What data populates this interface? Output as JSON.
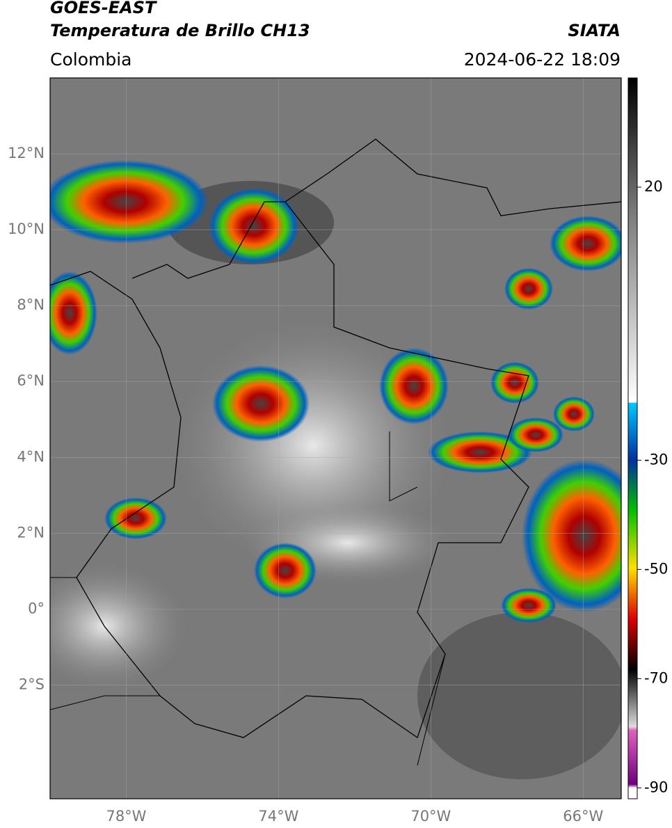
{
  "header": {
    "title_line1": "GOES-EAST",
    "title_line2": "Temperatura de Brillo CH13",
    "source": "SIATA",
    "region": "Colombia",
    "datetime": "2024-06-22 18:09"
  },
  "map": {
    "xlim": [
      -80,
      -65
    ],
    "ylim": [
      -5,
      14
    ],
    "lat_ticks": [
      {
        "value": 12,
        "label": "12°N"
      },
      {
        "value": 10,
        "label": "10°N"
      },
      {
        "value": 8,
        "label": "8°N"
      },
      {
        "value": 6,
        "label": "6°N"
      },
      {
        "value": 4,
        "label": "4°N"
      },
      {
        "value": 2,
        "label": "2°N"
      },
      {
        "value": 0,
        "label": "0°"
      },
      {
        "value": -2,
        "label": "2°S"
      }
    ],
    "lon_ticks": [
      {
        "value": -78,
        "label": "78°W"
      },
      {
        "value": -74,
        "label": "74°W"
      },
      {
        "value": -70,
        "label": "70°W"
      },
      {
        "value": -66,
        "label": "66°W"
      }
    ]
  },
  "colorbar": {
    "range": [
      -92,
      40
    ],
    "ticks": [
      20,
      -30,
      -50,
      -70,
      -90
    ]
  }
}
